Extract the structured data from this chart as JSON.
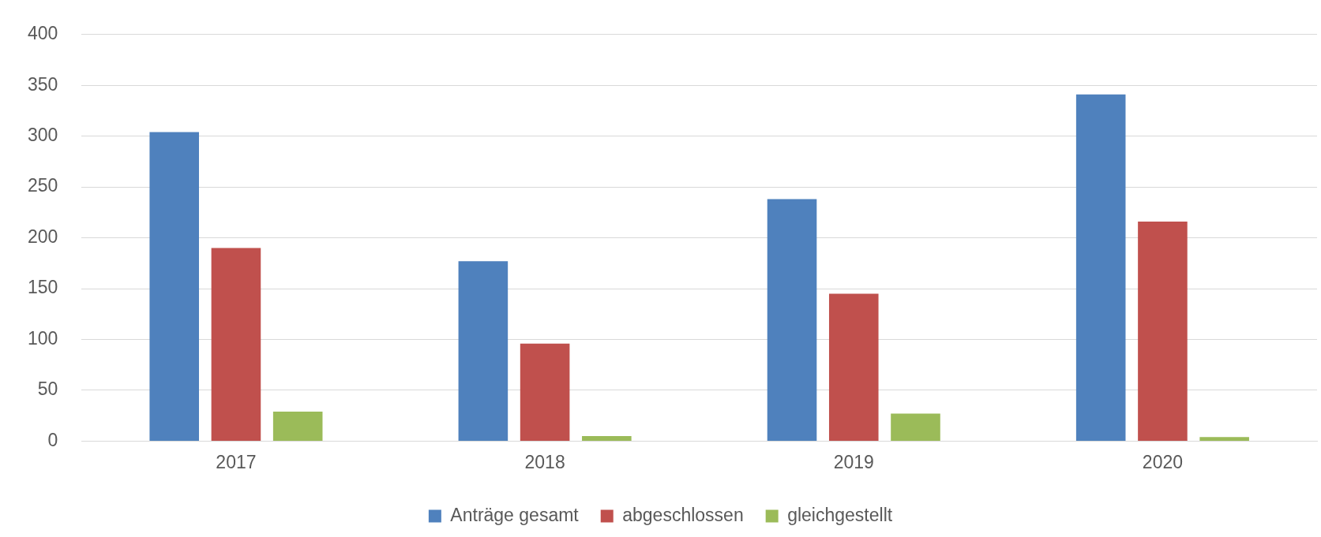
{
  "chart_data": {
    "type": "bar",
    "categories": [
      "2017",
      "2018",
      "2019",
      "2020"
    ],
    "series": [
      {
        "name": "Anträge gesamt",
        "color": "#4f81bd",
        "values": [
          304,
          177,
          238,
          341
        ]
      },
      {
        "name": "abgeschlossen",
        "color": "#c0504d",
        "values": [
          190,
          96,
          145,
          216
        ]
      },
      {
        "name": "gleichgestellt",
        "color": "#9bbb59",
        "values": [
          29,
          5,
          27,
          4
        ]
      }
    ],
    "ylim": [
      0,
      400
    ],
    "yticks": [
      0,
      50,
      100,
      150,
      200,
      250,
      300,
      350,
      400
    ],
    "grid": "y",
    "legend": "bottom"
  }
}
